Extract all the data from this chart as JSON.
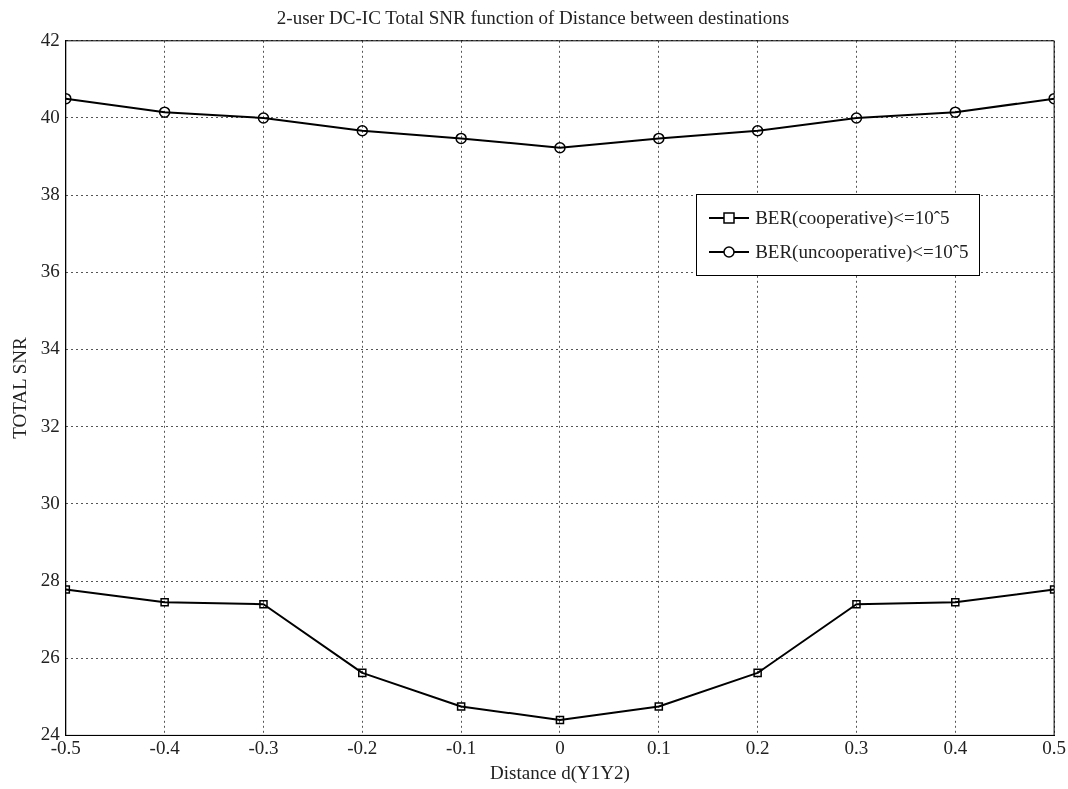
{
  "chart_data": {
    "type": "line",
    "title": "2-user DC-IC Total SNR function of Distance between destinations",
    "xlabel": "Distance d(Y1Y2)",
    "ylabel": "TOTAL SNR",
    "x": [
      -0.5,
      -0.4,
      -0.3,
      -0.2,
      -0.1,
      0,
      0.1,
      0.2,
      0.3,
      0.4,
      0.5
    ],
    "series": [
      {
        "name": "BER(cooperative)<=10ˆ5",
        "color": "#000000",
        "marker": "square",
        "values": [
          27.78,
          27.45,
          27.4,
          25.62,
          24.75,
          24.4,
          24.75,
          25.62,
          27.4,
          27.45,
          27.78
        ]
      },
      {
        "name": "BER(uncooperative)<=10ˆ5",
        "color": "#000000",
        "marker": "circle",
        "values": [
          40.5,
          40.15,
          40.0,
          39.67,
          39.47,
          39.23,
          39.47,
          39.67,
          40.0,
          40.15,
          40.5
        ]
      }
    ],
    "xlim": [
      -0.5,
      0.5
    ],
    "xticks": [
      -0.5,
      -0.4,
      -0.3,
      -0.2,
      -0.1,
      0,
      0.1,
      0.2,
      0.3,
      0.4,
      0.5
    ],
    "ylim": [
      24,
      42
    ],
    "yticks": [
      24,
      26,
      28,
      30,
      32,
      34,
      36,
      38,
      40,
      42
    ],
    "grid": true,
    "legend": "top right",
    "line_style": "solid"
  }
}
